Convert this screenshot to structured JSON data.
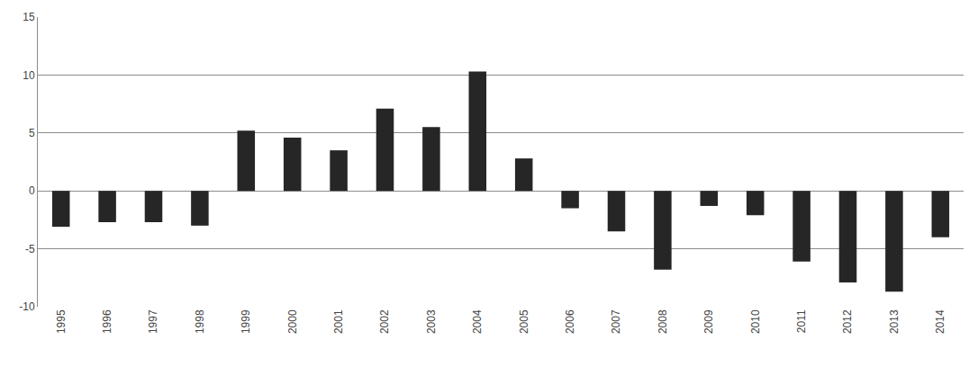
{
  "chart_data": {
    "type": "bar",
    "categories": [
      "1995",
      "1996",
      "1997",
      "1998",
      "1999",
      "2000",
      "2001",
      "2002",
      "2003",
      "2004",
      "2005",
      "2006",
      "2007",
      "2008",
      "2009",
      "2010",
      "2011",
      "2012",
      "2013",
      "2014"
    ],
    "values": [
      -3.1,
      -2.7,
      -2.7,
      -3.0,
      5.2,
      4.6,
      3.5,
      7.1,
      5.5,
      10.3,
      2.8,
      -1.5,
      -3.5,
      -6.8,
      -1.3,
      -2.1,
      -6.1,
      -7.9,
      -8.7,
      -4.0
    ],
    "color": "#262626",
    "ylim": [
      -10,
      15
    ],
    "yticks": [
      -10,
      -5,
      0,
      5,
      10,
      15
    ],
    "grid": true
  }
}
